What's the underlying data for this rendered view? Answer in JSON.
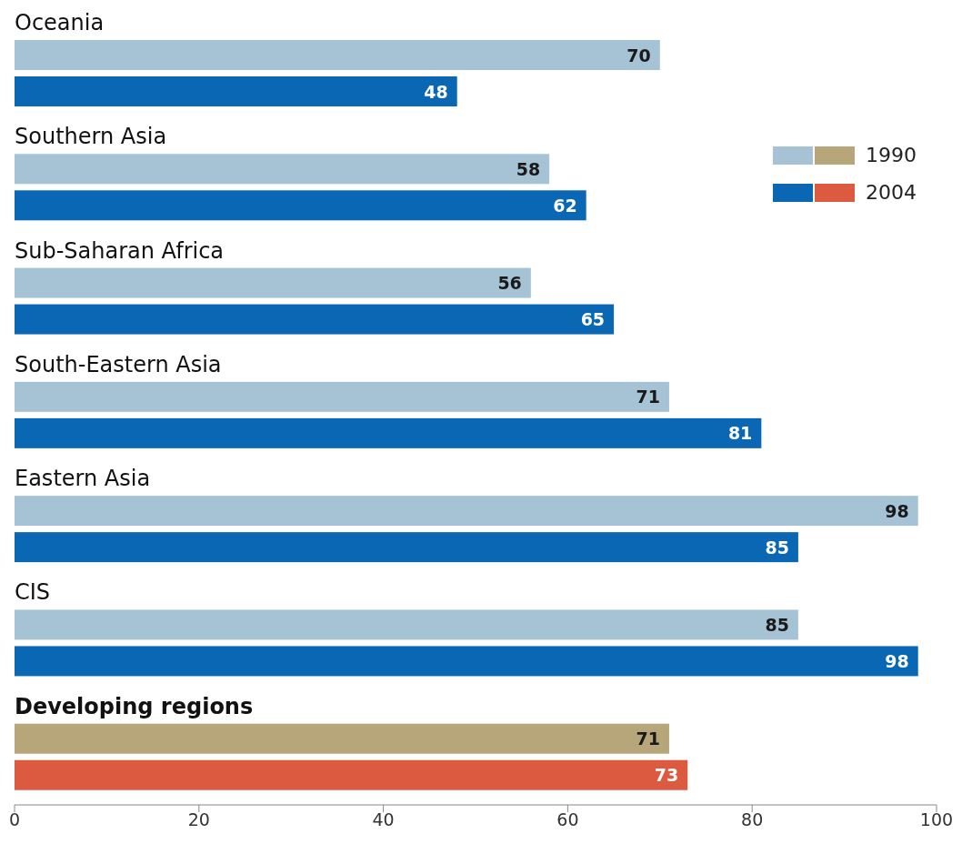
{
  "chart_data": {
    "type": "bar",
    "orientation": "horizontal",
    "categories": [
      "Oceania",
      "Southern Asia",
      "Sub-Saharan Africa",
      "South-Eastern Asia",
      "Eastern Asia",
      "CIS",
      "Developing regions"
    ],
    "series": [
      {
        "name": "1990",
        "colors": [
          "#a6c3d6",
          "#a6c3d6",
          "#a6c3d6",
          "#a6c3d6",
          "#a6c3d6",
          "#a6c3d6",
          "#b8a67b"
        ],
        "values": [
          70,
          58,
          56,
          71,
          98,
          85,
          71
        ]
      },
      {
        "name": "2004",
        "colors": [
          "#0a67b3",
          "#0a67b3",
          "#0a67b3",
          "#0a67b3",
          "#0a67b3",
          "#0a67b3",
          "#dc5a40"
        ],
        "values": [
          48,
          62,
          65,
          81,
          85,
          98,
          73
        ]
      }
    ],
    "xlim": [
      0,
      100
    ],
    "xticks": [
      0,
      20,
      40,
      60,
      80,
      100
    ],
    "legend": "top right",
    "data_labels": true
  }
}
